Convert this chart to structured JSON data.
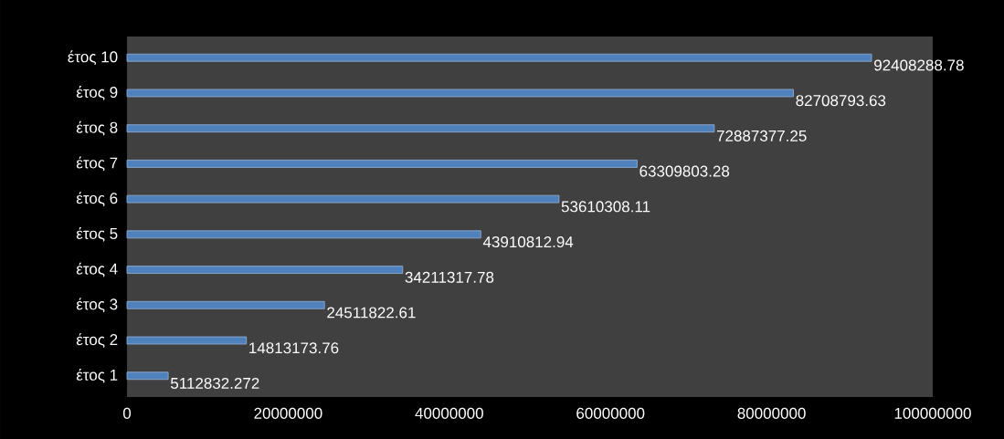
{
  "chart_data": {
    "type": "bar",
    "orientation": "horizontal",
    "categories": [
      "έτος 10",
      "έτος 9",
      "έτος 8",
      "έτος 7",
      "έτος 6",
      "έτος 5",
      "έτος 4",
      "έτος 3",
      "έτος 2",
      "έτος 1"
    ],
    "values": [
      92408288.78,
      82708793.63,
      72887377.25,
      63309803.28,
      53610308.11,
      43910812.94,
      34211317.78,
      24511822.61,
      14813173.76,
      5112832.272
    ],
    "value_labels": [
      "92408288.78",
      "82708793.63",
      "72887377.25",
      "63309803.28",
      "53610308.11",
      "43910812.94",
      "34211317.78",
      "24511822.61",
      "14813173.76",
      "5112832.272"
    ],
    "color": "#4f81bd",
    "xlim": [
      0,
      100000000
    ],
    "xticks": [
      0,
      20000000,
      40000000,
      60000000,
      80000000,
      100000000
    ]
  }
}
